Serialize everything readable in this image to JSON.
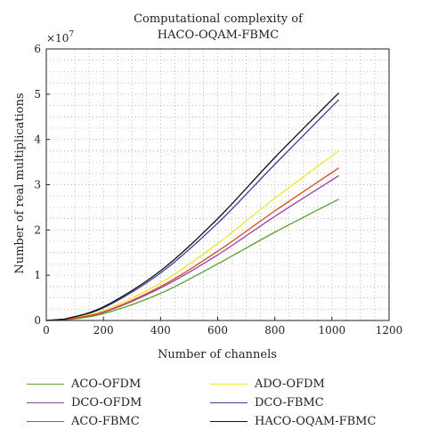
{
  "chart_data": {
    "type": "line",
    "title_lines": [
      "Computational complexity of",
      "HACO-OQAM-FBMC"
    ],
    "xlabel": "Number of channels",
    "ylabel": "Number of real multiplications",
    "y_scale_label": "×10",
    "y_scale_exponent": "7",
    "xlim": [
      0,
      1200
    ],
    "ylim": [
      0,
      6
    ],
    "x_ticks": [
      "0",
      "200",
      "400",
      "600",
      "800",
      "1000",
      "1200"
    ],
    "y_ticks": [
      "0",
      "1",
      "2",
      "3",
      "4",
      "5",
      "6"
    ],
    "grid": "dotted",
    "series": [
      {
        "name": "ACO-OFDM",
        "color": "#5aa02c",
        "x": [
          64,
          200,
          400,
          600,
          800,
          1024
        ],
        "y": [
          0.01,
          0.15,
          0.6,
          1.25,
          1.95,
          2.68
        ]
      },
      {
        "name": "ADO-OFDM",
        "color": "#f0e62e",
        "x": [
          64,
          200,
          400,
          600,
          800,
          1024
        ],
        "y": [
          0.02,
          0.22,
          0.83,
          1.7,
          2.7,
          3.75
        ]
      },
      {
        "name": "DCO-OFDM",
        "color": "#8e44ad",
        "x": [
          64,
          200,
          400,
          600,
          800,
          1024
        ],
        "y": [
          0.02,
          0.18,
          0.72,
          1.45,
          2.3,
          3.2
        ]
      },
      {
        "name": "DCO-FBMC",
        "color": "#3c3a9a",
        "x": [
          64,
          200,
          400,
          600,
          800,
          1024
        ],
        "y": [
          0.03,
          0.28,
          1.05,
          2.15,
          3.45,
          4.88
        ]
      },
      {
        "name": "ACO-FBMC",
        "color": "#d84a1b",
        "x": [
          64,
          200,
          400,
          600,
          800,
          1024
        ],
        "y": [
          0.02,
          0.19,
          0.75,
          1.53,
          2.42,
          3.37
        ]
      },
      {
        "name": "HACO-OQAM-FBMC",
        "color": "#111111",
        "x": [
          64,
          200,
          400,
          600,
          800,
          1024
        ],
        "y": [
          0.03,
          0.3,
          1.1,
          2.25,
          3.6,
          5.03
        ]
      }
    ]
  }
}
